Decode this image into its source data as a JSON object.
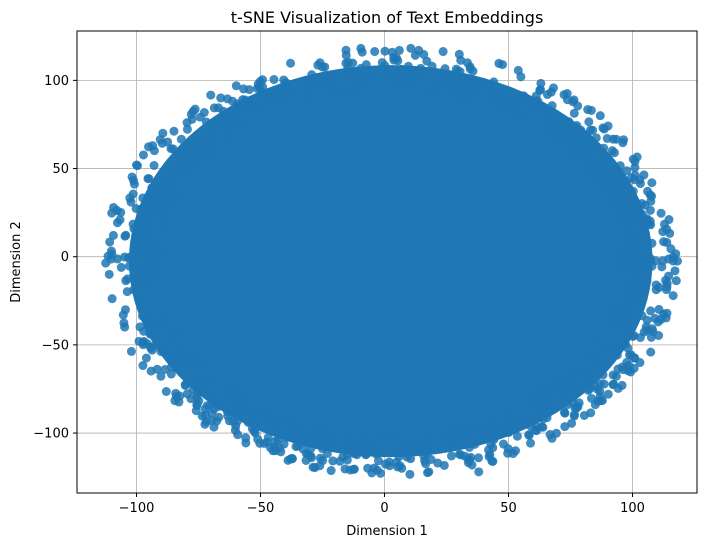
{
  "chart_data": {
    "type": "scatter",
    "title": "t-SNE Visualization of Text Embeddings",
    "xlabel": "Dimension 1",
    "ylabel": "Dimension 2",
    "xlim": [
      -124,
      126
    ],
    "ylim": [
      -134,
      128
    ],
    "xticks": [
      -100,
      -50,
      0,
      50,
      100
    ],
    "yticks": [
      -100,
      -50,
      0,
      50,
      100
    ],
    "xtick_labels": [
      "−100",
      "−50",
      "0",
      "50",
      "100"
    ],
    "ytick_labels": [
      "−100",
      "−50",
      "0",
      "50",
      "100"
    ],
    "grid": true,
    "legend": "none",
    "point_color": "#1f77b4",
    "point_opacity": 0.85,
    "cloud_extent": {
      "x": [
        -111,
        116
      ],
      "y": [
        -122,
        117
      ]
    },
    "outlier_points": [
      {
        "x": 38,
        "y": -122
      },
      {
        "x": -18,
        "y": -116
      },
      {
        "x": 27,
        "y": -113
      },
      {
        "x": 103,
        "y": -60
      },
      {
        "x": 78,
        "y": -85
      },
      {
        "x": 64,
        "y": -92
      },
      {
        "x": -26,
        "y": 110
      },
      {
        "x": -9,
        "y": 116
      },
      {
        "x": 6,
        "y": 117
      },
      {
        "x": 87,
        "y": 80
      },
      {
        "x": 101,
        "y": 54
      },
      {
        "x": 114,
        "y": -15
      },
      {
        "x": -111,
        "y": -10
      },
      {
        "x": -99,
        "y": -48
      },
      {
        "x": 104,
        "y": 24
      },
      {
        "x": -100,
        "y": 52
      },
      {
        "x": -60,
        "y": -96
      },
      {
        "x": 46,
        "y": -101
      }
    ]
  }
}
